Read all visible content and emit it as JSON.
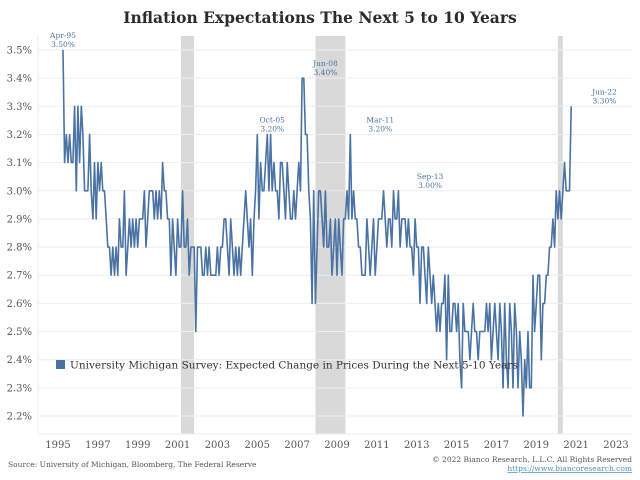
{
  "colors": {
    "series": "#4a73a3",
    "recession": "#d9d9d9",
    "grid": "#eeeeee",
    "title": "#2b2b2b",
    "annotation": "#4a74a2"
  },
  "footer": {
    "source": "Source: University of Michigan, Bloomberg, The Federal Reserve",
    "copyright": "© 2022 Bianco Research, L.L.C. All Rights Reserved",
    "url": "https://www.biancoresearch.com"
  },
  "chart_data": {
    "type": "line",
    "title": "Inflation Expectations The Next 5 to 10 Years",
    "xlabel": "",
    "ylabel": "",
    "ylim": [
      2.15,
      3.55
    ],
    "xlim": [
      1993.9,
      2023.6
    ],
    "y_ticks": [
      2.2,
      2.3,
      2.4,
      2.5,
      2.6,
      2.7,
      2.8,
      2.9,
      3.0,
      3.1,
      3.2,
      3.3,
      3.4,
      3.5
    ],
    "y_tick_labels": [
      "2.2%",
      "2.3%",
      "2.4%",
      "2.5%",
      "2.6%",
      "2.7%",
      "2.8%",
      "2.9%",
      "3.0%",
      "3.1%",
      "3.2%",
      "3.3%",
      "3.4%",
      "3.5%"
    ],
    "x_ticks": [
      1995,
      1997,
      1999,
      2001,
      2003,
      2005,
      2007,
      2009,
      2011,
      2013,
      2015,
      2017,
      2019,
      2021,
      2023
    ],
    "grid": "horizontal",
    "legend": {
      "placement": "lower-left",
      "entries": [
        "University Michigan Survey: Expected Change in Prices During the Next 5-10 Years"
      ]
    },
    "recessions": [
      {
        "start": 2001.17,
        "end": 2001.83
      },
      {
        "start": 2007.92,
        "end": 2009.42
      },
      {
        "start": 2020.08,
        "end": 2020.33
      }
    ],
    "annotations": [
      {
        "label": "Apr-95",
        "value": "3.50%",
        "x": 1995.25,
        "y": 3.5
      },
      {
        "label": "Oct-05",
        "value": "3.20%",
        "x": 2005.75,
        "y": 3.2
      },
      {
        "label": "Jun-08",
        "value": "3.40%",
        "x": 2008.42,
        "y": 3.4
      },
      {
        "label": "Mar-11",
        "value": "3.20%",
        "x": 2011.17,
        "y": 3.2
      },
      {
        "label": "Sep-13",
        "value": "3.00%",
        "x": 2013.67,
        "y": 3.0
      },
      {
        "label": "Jun-22",
        "value": "3.30%",
        "x": 2022.42,
        "y": 3.3
      }
    ],
    "series": [
      {
        "name": "University Michigan Survey: Expected Change in Prices During the Next 5-10 Years",
        "start": "1995-04",
        "frequency": "monthly",
        "values": [
          3.5,
          3.1,
          3.2,
          3.1,
          3.2,
          3.1,
          3.1,
          3.3,
          3.0,
          3.3,
          3.1,
          3.3,
          3.2,
          3.0,
          3.0,
          3.0,
          3.2,
          3.0,
          2.9,
          3.1,
          2.9,
          3.1,
          3.0,
          3.1,
          3.0,
          3.0,
          2.9,
          2.8,
          2.8,
          2.7,
          2.8,
          2.7,
          2.8,
          2.7,
          2.9,
          2.8,
          2.8,
          3.0,
          2.7,
          2.8,
          2.9,
          2.8,
          2.9,
          2.8,
          2.9,
          2.8,
          2.9,
          2.9,
          2.9,
          3.0,
          2.8,
          2.9,
          3.0,
          3.0,
          3.0,
          2.9,
          3.0,
          2.9,
          3.0,
          2.9,
          3.1,
          3.0,
          3.0,
          2.9,
          2.9,
          2.7,
          2.9,
          2.8,
          2.7,
          2.9,
          2.8,
          2.8,
          3.0,
          2.8,
          2.8,
          2.9,
          2.7,
          2.8,
          2.8,
          2.8,
          2.5,
          2.8,
          2.8,
          2.8,
          2.7,
          2.7,
          2.8,
          2.7,
          2.8,
          2.7,
          2.7,
          2.7,
          2.7,
          2.8,
          2.7,
          2.8,
          2.8,
          2.9,
          2.9,
          2.8,
          2.7,
          2.9,
          2.8,
          2.7,
          2.8,
          2.7,
          2.8,
          2.7,
          2.8,
          2.9,
          3.0,
          2.9,
          2.8,
          2.9,
          2.7,
          2.9,
          3.0,
          3.2,
          2.9,
          3.1,
          3.0,
          3.0,
          3.1,
          3.2,
          3.0,
          3.2,
          3.0,
          3.1,
          3.0,
          3.0,
          2.9,
          3.1,
          3.1,
          3.0,
          2.9,
          3.1,
          3.0,
          2.9,
          2.9,
          3.0,
          2.9,
          3.0,
          3.1,
          3.0,
          3.4,
          3.4,
          3.2,
          3.2,
          3.0,
          2.9,
          2.6,
          3.0,
          2.6,
          2.8,
          3.0,
          3.0,
          2.9,
          2.8,
          3.0,
          2.8,
          2.8,
          2.9,
          2.7,
          2.8,
          2.9,
          2.7,
          2.9,
          2.8,
          2.7,
          2.9,
          2.9,
          3.0,
          2.9,
          3.2,
          2.9,
          3.0,
          2.9,
          2.9,
          2.8,
          2.8,
          2.7,
          2.7,
          2.7,
          2.9,
          2.8,
          2.7,
          2.8,
          2.9,
          2.7,
          2.8,
          2.9,
          2.9,
          2.9,
          3.0,
          2.9,
          2.8,
          2.9,
          2.9,
          2.8,
          3.0,
          2.9,
          2.9,
          3.0,
          2.8,
          2.9,
          2.9,
          2.9,
          2.8,
          2.9,
          2.8,
          2.8,
          2.7,
          2.9,
          2.8,
          2.8,
          2.6,
          2.8,
          2.8,
          2.7,
          2.6,
          2.8,
          2.7,
          2.6,
          2.7,
          2.6,
          2.5,
          2.6,
          2.5,
          2.6,
          2.6,
          2.7,
          2.4,
          2.7,
          2.5,
          2.5,
          2.6,
          2.6,
          2.5,
          2.6,
          2.4,
          2.3,
          2.6,
          2.5,
          2.5,
          2.5,
          2.4,
          2.5,
          2.6,
          2.5,
          2.5,
          2.4,
          2.5,
          2.5,
          2.5,
          2.5,
          2.6,
          2.5,
          2.6,
          2.4,
          2.5,
          2.6,
          2.5,
          2.4,
          2.6,
          2.5,
          2.3,
          2.6,
          2.4,
          2.3,
          2.6,
          2.5,
          2.3,
          2.6,
          2.5,
          2.3,
          2.5,
          2.4,
          2.2,
          2.4,
          2.3,
          2.5,
          2.3,
          2.3,
          2.7,
          2.5,
          2.6,
          2.7,
          2.7,
          2.4,
          2.6,
          2.6,
          2.7,
          2.7,
          2.8,
          2.8,
          2.9,
          2.8,
          3.0,
          2.9,
          3.0,
          2.9,
          3.0,
          3.1,
          3.0,
          3.0,
          3.0,
          3.3
        ]
      }
    ]
  }
}
